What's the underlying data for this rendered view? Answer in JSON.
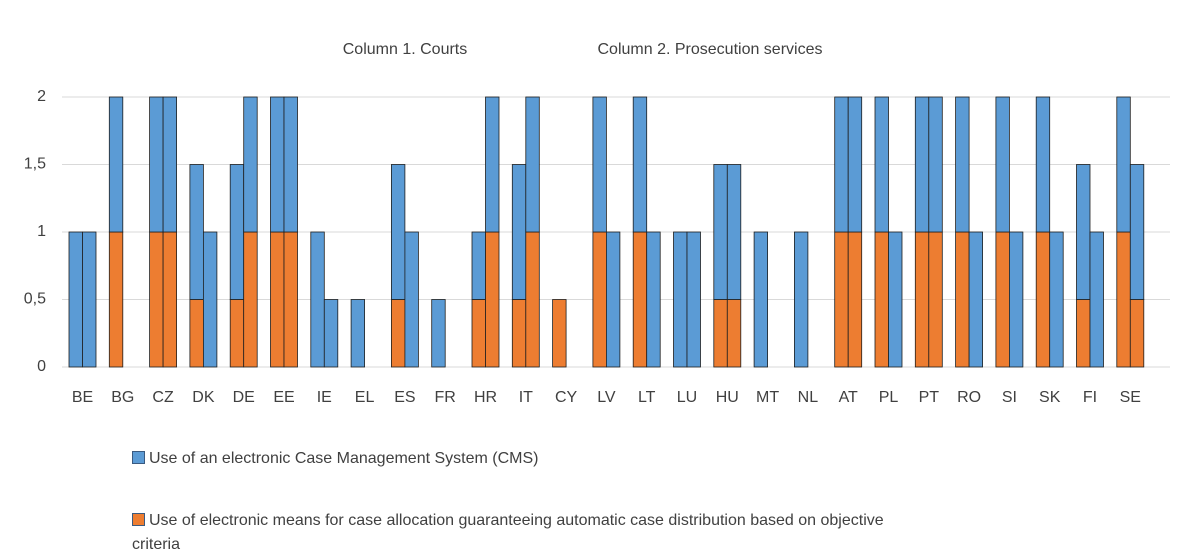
{
  "chart_data": {
    "type": "stacked_bar_pairs",
    "column_labels": [
      "Column 1. Courts",
      "Column 2. Prosecution services"
    ],
    "categories": [
      "BE",
      "BG",
      "CZ",
      "DK",
      "DE",
      "EE",
      "IE",
      "EL",
      "ES",
      "FR",
      "HR",
      "IT",
      "CY",
      "LV",
      "LT",
      "LU",
      "HU",
      "MT",
      "NL",
      "AT",
      "PL",
      "PT",
      "RO",
      "SI",
      "SK",
      "FI",
      "SE"
    ],
    "series": [
      {
        "name": "Use of an electronic Case Management System (CMS)",
        "color": "#5b9bd5",
        "courts": [
          1,
          1,
          1,
          1,
          1,
          1,
          1,
          0.5,
          1,
          0.5,
          0.5,
          1,
          0,
          1,
          1,
          1,
          1,
          1,
          1,
          1,
          1,
          1,
          1,
          1,
          1,
          1,
          1
        ],
        "prosecution": [
          1,
          null,
          1,
          1,
          1,
          1,
          0.5,
          null,
          1,
          null,
          1,
          1,
          null,
          1,
          1,
          1,
          1,
          null,
          null,
          1,
          1,
          1,
          1,
          1,
          1,
          1,
          1
        ]
      },
      {
        "name": "Use of electronic means for case allocation guaranteeing automatic case distribution based on objective criteria",
        "color": "#ed7d31",
        "courts": [
          0,
          1,
          1,
          0.5,
          0.5,
          1,
          0,
          0,
          0.5,
          0,
          0.5,
          0.5,
          0.5,
          1,
          1,
          0,
          0.5,
          0,
          0,
          1,
          1,
          1,
          1,
          1,
          1,
          0.5,
          1
        ],
        "prosecution": [
          0,
          null,
          1,
          0,
          1,
          1,
          0,
          null,
          0,
          null,
          1,
          1,
          null,
          0,
          0,
          0,
          0.5,
          null,
          null,
          1,
          0,
          1,
          0,
          0,
          0,
          0,
          0.5
        ]
      }
    ],
    "ylim": [
      0,
      2
    ],
    "yticks": [
      0,
      {
        "value": 0.5,
        "label": "0,5"
      },
      1,
      {
        "value": 1.5,
        "label": "1,5"
      },
      2
    ],
    "grid": true
  }
}
